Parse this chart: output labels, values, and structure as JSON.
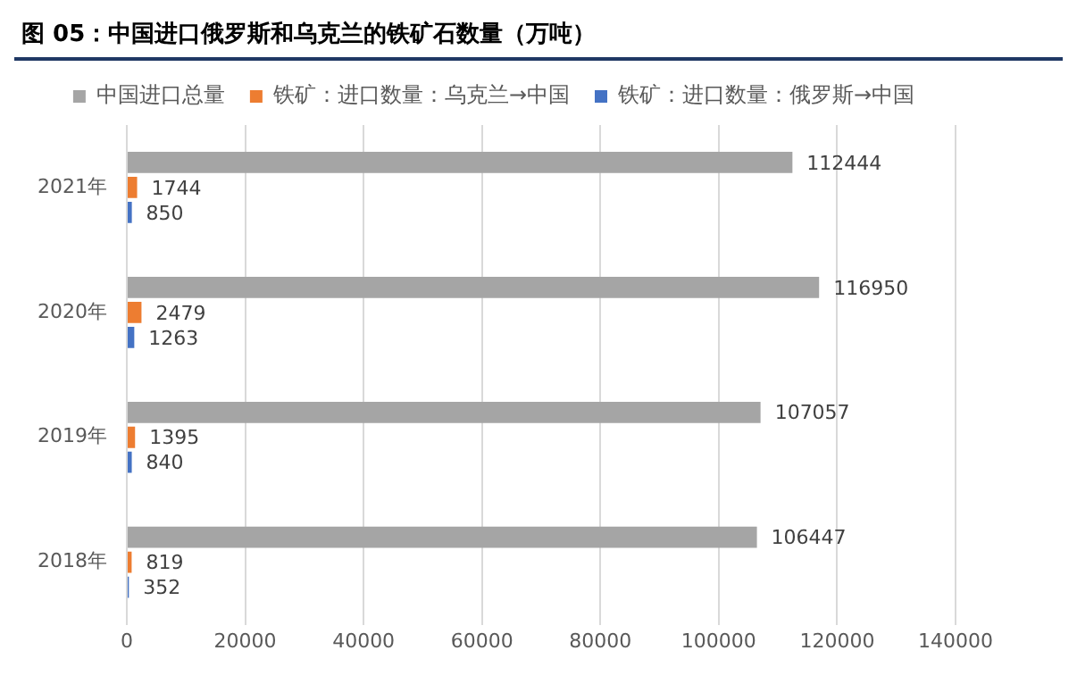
{
  "chart_data": {
    "type": "bar",
    "title": "图 05：中国进口俄罗斯和乌克兰的铁矿石数量（万吨）",
    "orientation": "horizontal",
    "categories": [
      "2021年",
      "2020年",
      "2019年",
      "2018年"
    ],
    "series": [
      {
        "name": "中国进口总量",
        "color": "#a5a5a5",
        "values": [
          112444,
          116950,
          107057,
          106447
        ]
      },
      {
        "name": "铁矿：进口数量：乌克兰→中国",
        "color": "#ed7d31",
        "values": [
          1744,
          2479,
          1395,
          819
        ]
      },
      {
        "name": "铁矿：进口数量：俄罗斯→中国",
        "color": "#4472c4",
        "values": [
          850,
          1263,
          840,
          352
        ]
      }
    ],
    "xlim": [
      0,
      140000
    ],
    "xticks": [
      0,
      20000,
      40000,
      60000,
      80000,
      100000,
      120000,
      140000
    ],
    "grid": "x",
    "legend": "top",
    "data_labels": true
  }
}
